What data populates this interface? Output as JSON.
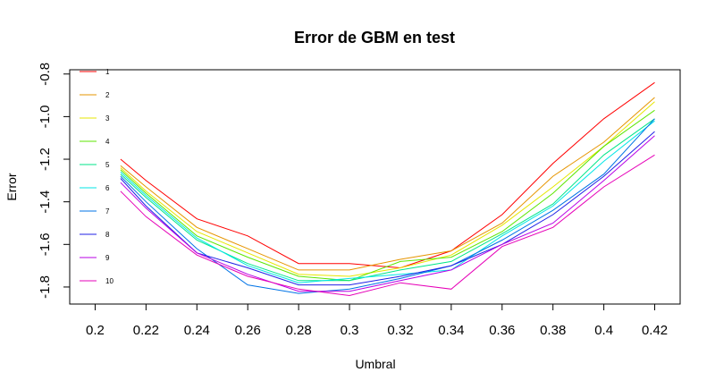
{
  "chart_data": {
    "type": "line",
    "title": "Error de GBM en test",
    "xlabel": "Umbral",
    "ylabel": "Error",
    "x_ticks": [
      "0.2",
      "0.22",
      "0.24",
      "0.26",
      "0.28",
      "0.3",
      "0.32",
      "0.34",
      "0.36",
      "0.38",
      "0.4",
      "0.42"
    ],
    "y_ticks": [
      "-1.8",
      "-1.6",
      "-1.4",
      "-1.2",
      "-1.0",
      "-0.8"
    ],
    "xlim": [
      0.19,
      0.43
    ],
    "ylim": [
      -1.88,
      -0.78
    ],
    "grid": false,
    "legend_position": "top-left",
    "x": [
      0.21,
      0.22,
      0.24,
      0.26,
      0.28,
      0.3,
      0.32,
      0.34,
      0.36,
      0.38,
      0.4,
      0.42
    ],
    "series": [
      {
        "name": "1",
        "color": "#FF0000",
        "values": [
          -1.2,
          -1.3,
          -1.48,
          -1.56,
          -1.69,
          -1.69,
          -1.71,
          -1.63,
          -1.46,
          -1.22,
          -1.01,
          -0.84
        ]
      },
      {
        "name": "2",
        "color": "#E69500",
        "values": [
          -1.23,
          -1.33,
          -1.52,
          -1.62,
          -1.72,
          -1.72,
          -1.67,
          -1.63,
          -1.5,
          -1.28,
          -1.12,
          -0.91
        ]
      },
      {
        "name": "3",
        "color": "#E6E600",
        "values": [
          -1.24,
          -1.35,
          -1.54,
          -1.64,
          -1.74,
          -1.75,
          -1.71,
          -1.65,
          -1.51,
          -1.33,
          -1.14,
          -0.93
        ]
      },
      {
        "name": "4",
        "color": "#5CE600",
        "values": [
          -1.25,
          -1.36,
          -1.56,
          -1.66,
          -1.75,
          -1.77,
          -1.68,
          -1.66,
          -1.54,
          -1.36,
          -1.14,
          -0.97
        ]
      },
      {
        "name": "5",
        "color": "#00E68A",
        "values": [
          -1.27,
          -1.38,
          -1.58,
          -1.69,
          -1.77,
          -1.77,
          -1.72,
          -1.68,
          -1.55,
          -1.41,
          -1.18,
          -1.01
        ]
      },
      {
        "name": "6",
        "color": "#00E6E6",
        "values": [
          -1.26,
          -1.37,
          -1.57,
          -1.7,
          -1.78,
          -1.76,
          -1.74,
          -1.72,
          -1.56,
          -1.42,
          -1.21,
          -1.02
        ]
      },
      {
        "name": "7",
        "color": "#0073E6",
        "values": [
          -1.28,
          -1.4,
          -1.62,
          -1.79,
          -1.83,
          -1.81,
          -1.76,
          -1.7,
          -1.58,
          -1.44,
          -1.27,
          -1.01
        ]
      },
      {
        "name": "8",
        "color": "#2020E6",
        "values": [
          -1.29,
          -1.42,
          -1.64,
          -1.71,
          -1.79,
          -1.79,
          -1.75,
          -1.7,
          -1.6,
          -1.46,
          -1.28,
          -1.07
        ]
      },
      {
        "name": "9",
        "color": "#B800E6",
        "values": [
          -1.31,
          -1.43,
          -1.64,
          -1.74,
          -1.82,
          -1.82,
          -1.77,
          -1.72,
          -1.6,
          -1.5,
          -1.3,
          -1.09
        ]
      },
      {
        "name": "10",
        "color": "#E600B8",
        "values": [
          -1.35,
          -1.47,
          -1.65,
          -1.75,
          -1.81,
          -1.84,
          -1.78,
          -1.81,
          -1.61,
          -1.52,
          -1.33,
          -1.18
        ]
      }
    ]
  }
}
